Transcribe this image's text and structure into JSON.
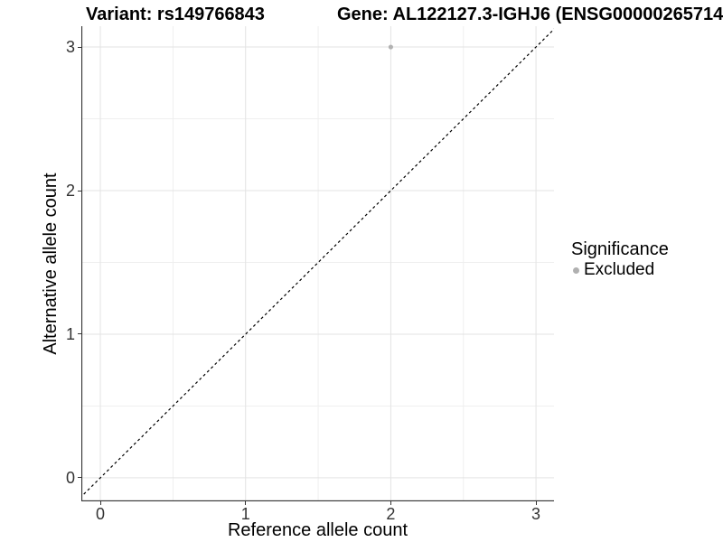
{
  "header": {
    "variant_title": "Variant: rs149766843",
    "gene_title": "Gene: AL122127.3-IGHJ6 (ENSG00000265714"
  },
  "chart_data": {
    "type": "scatter",
    "title": "Variant: rs149766843",
    "subtitle": "Gene: AL122127.3-IGHJ6 (ENSG00000265714",
    "xlabel": "Reference allele count",
    "ylabel": "Alternative allele count",
    "xlim": [
      -0.131,
      3.124
    ],
    "ylim": [
      -0.164,
      3.145
    ],
    "xticks": [
      0,
      1,
      2,
      3
    ],
    "yticks": [
      0,
      1,
      2,
      3
    ],
    "minor_xticks": [
      0.5,
      1.5,
      2.5
    ],
    "minor_yticks": [
      0.5,
      1.5,
      2.5
    ],
    "grid": "major+minor",
    "series": [
      {
        "name": "Excluded",
        "marker": "circle",
        "marker_radius": 2.6,
        "color": "#b2b2b2",
        "points": [
          [
            2,
            3
          ]
        ]
      }
    ],
    "reference_line": {
      "type": "identity y=x",
      "style": "dashed",
      "color": "#000000"
    },
    "legend": {
      "title": "Significance",
      "position": "right",
      "items": [
        {
          "label": "Excluded",
          "color": "#b0b0b0"
        }
      ]
    }
  },
  "colors": {
    "background": "#ffffff",
    "grid_major": "#e3e3e3",
    "grid_minor": "#efefef",
    "axis_line": "#333333",
    "tick_label": "#333333"
  }
}
